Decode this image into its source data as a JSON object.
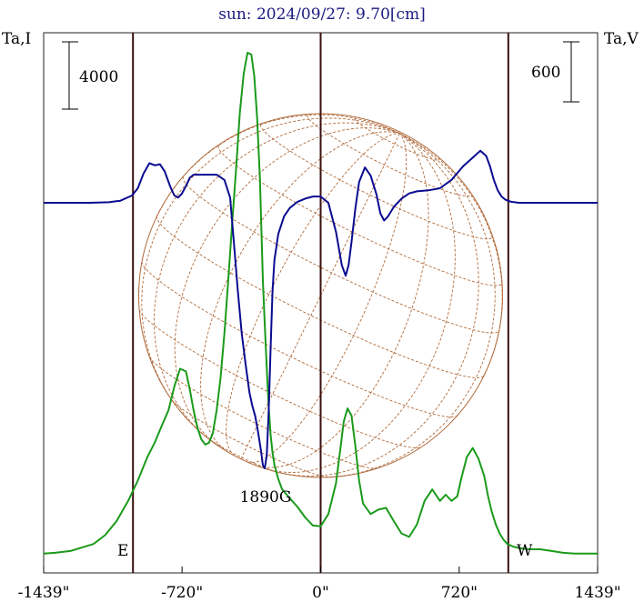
{
  "chart_data": {
    "type": "line",
    "title": "sun: 2024/09/27: 9.70[cm]",
    "left_axis_label": "Ta,I",
    "right_axis_label": "Ta,V",
    "scale_bar_left": "4000",
    "scale_bar_right": "600",
    "x_tick_labels": [
      "-1439\"",
      "-720\"",
      "0\"",
      "720\"",
      "1439\""
    ],
    "x_ticks": [
      -1439,
      -720,
      0,
      720,
      1439
    ],
    "xlim": [
      -1439,
      1439
    ],
    "limb_marker_x": [
      -975,
      975
    ],
    "limb_labels": {
      "east": "E",
      "west": "W"
    },
    "annotation": {
      "text": "1890G",
      "x": -290
    },
    "colors": {
      "intensity": "#1a9a1a",
      "polarization": "#0a0a90",
      "disk": "#b06a3a",
      "title": "#1a1a80",
      "vlines": "#3a1010"
    },
    "series": [
      {
        "key": "intensity",
        "x": [
          -1439,
          -1380,
          -1300,
          -1240,
          -1180,
          -1120,
          -1060,
          -1000,
          -950,
          -900,
          -860,
          -830,
          -790,
          -760,
          -730,
          -700,
          -680,
          -660,
          -640,
          -620,
          -600,
          -580,
          -560,
          -540,
          -520,
          -500,
          -480,
          -460,
          -440,
          -420,
          -400,
          -380,
          -360,
          -345,
          -330,
          -315,
          -300,
          -290,
          -280,
          -270,
          -260,
          -250,
          -240,
          -220,
          -200,
          -160,
          -120,
          -80,
          -40,
          0,
          40,
          80,
          100,
          120,
          140,
          160,
          180,
          200,
          220,
          260,
          300,
          340,
          380,
          420,
          460,
          500,
          540,
          580,
          620,
          650,
          680,
          710,
          730,
          760,
          790,
          820,
          850,
          870,
          890,
          910,
          930,
          950,
          970,
          1000,
          1040,
          1080,
          1140,
          1200,
          1260,
          1320,
          1380,
          1439
        ],
        "y": [
          -0.05,
          -0.04,
          -0.02,
          0.02,
          0.06,
          0.16,
          0.32,
          0.55,
          0.78,
          1.05,
          1.22,
          1.38,
          1.58,
          1.85,
          2.05,
          2.02,
          1.82,
          1.58,
          1.38,
          1.25,
          1.19,
          1.21,
          1.32,
          1.58,
          1.95,
          2.45,
          3.05,
          3.7,
          4.3,
          4.95,
          5.4,
          5.64,
          5.62,
          5.38,
          4.9,
          4.2,
          3.05,
          2.55,
          2.05,
          1.62,
          1.3,
          1.1,
          0.96,
          0.8,
          0.68,
          0.58,
          0.48,
          0.36,
          0.27,
          0.26,
          0.4,
          0.75,
          1.1,
          1.45,
          1.6,
          1.52,
          1.18,
          0.78,
          0.52,
          0.4,
          0.45,
          0.47,
          0.32,
          0.18,
          0.14,
          0.28,
          0.55,
          0.68,
          0.55,
          0.62,
          0.55,
          0.6,
          0.8,
          1.05,
          1.15,
          1.03,
          0.83,
          0.6,
          0.42,
          0.28,
          0.18,
          0.11,
          0.06,
          0.03,
          0.01,
          0.0,
          0.0,
          -0.02,
          -0.04,
          -0.05,
          -0.05,
          -0.05
        ]
      },
      {
        "key": "polarization",
        "x": [
          -1439,
          -1300,
          -1200,
          -1100,
          -1040,
          -980,
          -950,
          -920,
          -890,
          -860,
          -835,
          -810,
          -780,
          -760,
          -740,
          -720,
          -700,
          -680,
          -660,
          -640,
          -620,
          -580,
          -540,
          -500,
          -470,
          -450,
          -430,
          -410,
          -390,
          -370,
          -355,
          -340,
          -325,
          -310,
          -300,
          -290,
          -280,
          -270,
          -260,
          -250,
          -240,
          -220,
          -190,
          -160,
          -120,
          -80,
          -40,
          0,
          40,
          80,
          110,
          130,
          145,
          160,
          180,
          200,
          230,
          260,
          290,
          310,
          330,
          350,
          380,
          420,
          460,
          500,
          560,
          620,
          680,
          740,
          800,
          830,
          860,
          880,
          900,
          920,
          940,
          960,
          990,
          1030,
          1080,
          1160,
          1240,
          1320,
          1439
        ],
        "y": [
          0,
          0,
          0,
          0.005,
          0.02,
          0.07,
          0.14,
          0.28,
          0.38,
          0.36,
          0.37,
          0.3,
          0.15,
          0.07,
          0.05,
          0.09,
          0.16,
          0.24,
          0.27,
          0.27,
          0.27,
          0.27,
          0.27,
          0.22,
          0.05,
          -0.4,
          -0.85,
          -1.25,
          -1.55,
          -1.82,
          -1.95,
          -2.05,
          -2.2,
          -2.38,
          -2.52,
          -2.55,
          -2.42,
          -2.0,
          -1.4,
          -0.85,
          -0.55,
          -0.3,
          -0.13,
          -0.05,
          0.01,
          0.04,
          0.06,
          0.06,
          0.0,
          -0.28,
          -0.6,
          -0.7,
          -0.6,
          -0.38,
          -0.06,
          0.2,
          0.34,
          0.26,
          0.08,
          -0.1,
          -0.17,
          -0.13,
          -0.04,
          0.04,
          0.09,
          0.11,
          0.12,
          0.14,
          0.22,
          0.35,
          0.45,
          0.5,
          0.45,
          0.35,
          0.22,
          0.12,
          0.06,
          0.03,
          0.01,
          0,
          0,
          0,
          0,
          0,
          0
        ]
      }
    ]
  }
}
